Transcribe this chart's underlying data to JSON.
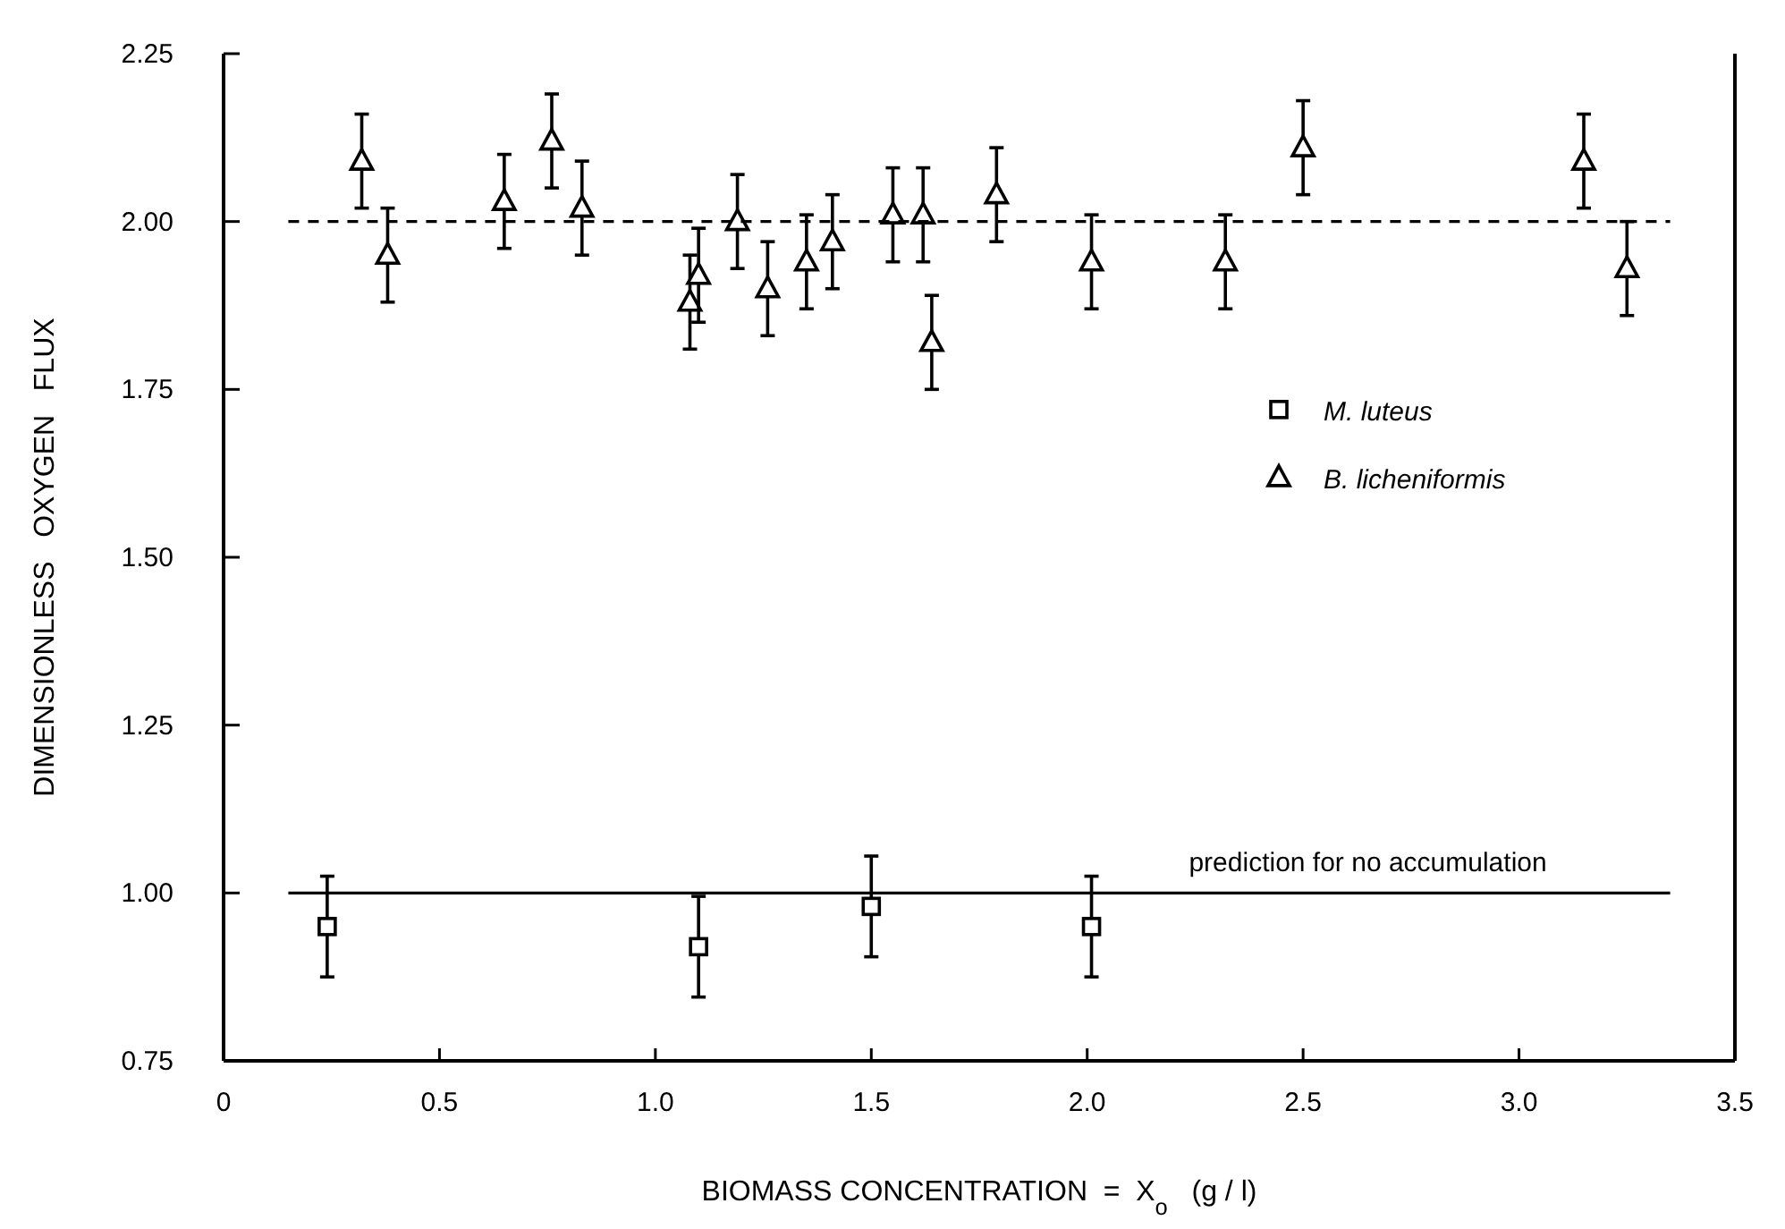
{
  "chart_data": {
    "type": "scatter",
    "xlabel": "BIOMASS CONCENTRATION  =  X$_{o}$   (g / l)",
    "ylabel": "DIMENSIONLESS OXYGEN FLUX",
    "xlim": [
      0,
      3.5
    ],
    "xticks": [
      0,
      0.5,
      {
        "value": 1,
        "label": "1.0"
      },
      1.5,
      {
        "value": 2,
        "label": "2.0"
      },
      2.5,
      {
        "value": 3,
        "label": "3.0"
      },
      3.5
    ],
    "ylim": [
      0.75,
      2.25
    ],
    "yticks": [
      {
        "value": 0.75,
        "label": "0.75"
      },
      {
        "value": 1,
        "label": "1.00"
      },
      {
        "value": 1.25,
        "label": "1.25"
      },
      {
        "value": 1.5,
        "label": "1.50"
      },
      {
        "value": 1.75,
        "label": "1.75"
      },
      {
        "value": 2,
        "label": "2.00"
      },
      {
        "value": 2.25,
        "label": "2.25"
      }
    ],
    "grid": false,
    "legend": "right",
    "series": [
      {
        "name": "M. luteus",
        "color": "#000000",
        "marker": "square",
        "x": [
          0.24,
          1.1,
          1.5,
          2.01
        ],
        "values": [
          0.95,
          0.92,
          0.98,
          0.95
        ],
        "errors": [
          0.075,
          0.075,
          0.075,
          0.075
        ]
      },
      {
        "name": "B. licheniformis",
        "color": "#000000",
        "marker": "triangle",
        "x": [
          0.32,
          0.38,
          0.65,
          0.76,
          0.83,
          1.08,
          1.1,
          1.19,
          1.26,
          1.35,
          1.41,
          1.55,
          1.62,
          1.64,
          1.79,
          2.01,
          2.32,
          2.5,
          3.15,
          3.25
        ],
        "values": [
          2.09,
          1.95,
          2.03,
          2.12,
          2.02,
          1.88,
          1.92,
          2.0,
          1.9,
          1.94,
          1.97,
          2.01,
          2.01,
          1.82,
          2.04,
          1.94,
          1.94,
          2.11,
          2.09,
          1.93
        ],
        "errors": [
          0.07,
          0.07,
          0.07,
          0.07,
          0.07,
          0.07,
          0.07,
          0.07,
          0.07,
          0.07,
          0.07,
          0.07,
          0.07,
          0.07,
          0.07,
          0.07,
          0.07,
          0.07,
          0.07,
          0.07
        ]
      },
      {
        "type": "line",
        "color": "#000000",
        "line_style": "dashed",
        "x": [
          0.15,
          3.35
        ],
        "values": [
          2.0,
          2.0
        ]
      },
      {
        "type": "line",
        "color": "#000000",
        "line_style": "solid",
        "x": [
          0.15,
          3.35
        ],
        "values": [
          1.0,
          1.0
        ]
      }
    ],
    "annotations": [
      {
        "text": "prediction for no accumulation",
        "x": 2.65,
        "y": 1.0
      }
    ]
  }
}
